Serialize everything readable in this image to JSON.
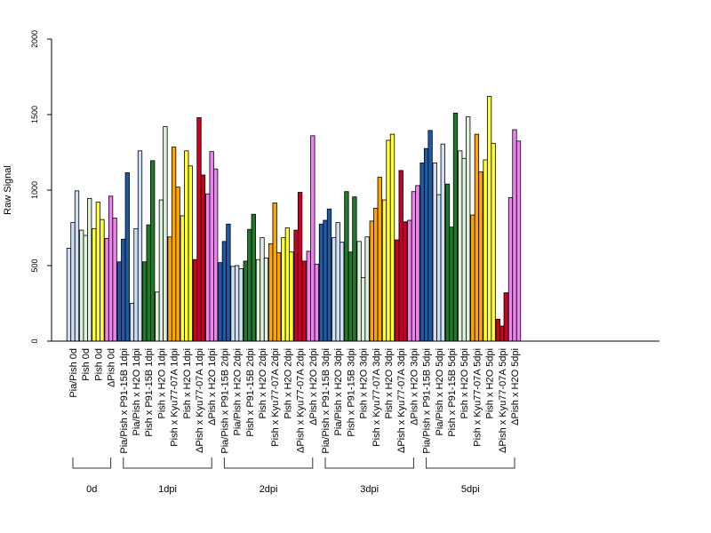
{
  "chart_data": {
    "type": "bar",
    "ylabel": "Raw Signal",
    "ylim": [
      0,
      2000
    ],
    "yticks": [
      0,
      500,
      1000,
      1500,
      2000
    ],
    "grid": false,
    "legend": "none",
    "categories": [
      "Pia/Pish 0d",
      "Pish 0d",
      "Pish 0d",
      "ΔPish 0d",
      "Pia/Pish x P91-15B 1dpi",
      "Pia/Pish x H2O 1dpi",
      "Pish x P91-15B 1dpi",
      "Pish x H2O 1dpi",
      "Pish x Kyu77-07A 1dpi",
      "Pish x H2O 1dpi",
      "ΔPish x Kyu77-07A 1dpi",
      "ΔPish x H2O 1dpi",
      "Pia/Pish x P91-15B 2dpi",
      "Pia/Pish x H2O 2dpi",
      "Pish x P91-15B 2dpi",
      "Pish x H2O 2dpi",
      "Pish x Kyu77-07A 2dpi",
      "Pish x H2O 2dpi",
      "ΔPish x Kyu77-07A 2dpi",
      "ΔPish x H2O 2dpi",
      "Pia/Pish x P91-15B 3dpi",
      "Pia/Pish x H2O 3dpi",
      "Pish x P91-15B 3dpi",
      "Pish x H2O 3dpi",
      "Pish x Kyu77-07A 3dpi",
      "Pish x H2O 3dpi",
      "ΔPish x Kyu77-07A 3dpi",
      "ΔPish x H2O 3dpi",
      "Pia/Pish x P91-15B 5dpi",
      "Pia/Pish x H2O 5dpi",
      "Pish x P91-15B 5dpi",
      "Pish x H2O 5dpi",
      "Pish x Kyu77-07A 5dpi",
      "Pish x H2O 5dpi",
      "ΔPish x Kyu77-07A 5dpi",
      "ΔPish x H2O 5dpi"
    ],
    "colors": [
      "#cfe0f4",
      "#dff0dc",
      "#ffff33",
      "#ee82ee",
      "#1f5aa6",
      "#cfe0f4",
      "#1f7a2a",
      "#dff0dc",
      "#ffa500",
      "#ffff33",
      "#cc0022",
      "#ee82ee",
      "#1f5aa6",
      "#cfe0f4",
      "#1f7a2a",
      "#dff0dc",
      "#ffa500",
      "#ffff33",
      "#cc0022",
      "#ee82ee",
      "#1f5aa6",
      "#cfe0f4",
      "#1f7a2a",
      "#dff0dc",
      "#ffa500",
      "#ffff33",
      "#cc0022",
      "#ee82ee",
      "#1f5aa6",
      "#cfe0f4",
      "#1f7a2a",
      "#dff0dc",
      "#ffa500",
      "#ffff33",
      "#cc0022",
      "#ee82ee"
    ],
    "values": [
      [
        615,
        785,
        995
      ],
      [
        735,
        700,
        945
      ],
      [
        745,
        920,
        805
      ],
      [
        680,
        960,
        815
      ],
      [
        525,
        675,
        1115
      ],
      [
        250,
        745,
        1260
      ],
      [
        525,
        770,
        1195
      ],
      [
        325,
        935,
        1420
      ],
      [
        690,
        1285,
        1020
      ],
      [
        830,
        1260,
        1160
      ],
      [
        540,
        1480,
        1100
      ],
      [
        975,
        1255,
        1140
      ],
      [
        520,
        660,
        775
      ],
      [
        495,
        500,
        480
      ],
      [
        530,
        740,
        840
      ],
      [
        540,
        685,
        550
      ],
      [
        645,
        915,
        585
      ],
      [
        685,
        750,
        590
      ],
      [
        735,
        985,
        530
      ],
      [
        595,
        1360,
        510
      ],
      [
        775,
        800,
        875
      ],
      [
        685,
        785,
        655
      ],
      [
        990,
        590,
        955
      ],
      [
        660,
        420,
        690
      ],
      [
        795,
        880,
        1085
      ],
      [
        935,
        1330,
        1370
      ],
      [
        670,
        1130,
        790
      ],
      [
        800,
        990,
        1030
      ],
      [
        1180,
        1275,
        1395
      ],
      [
        1180,
        970,
        1305
      ],
      [
        1040,
        755,
        1510
      ],
      [
        1260,
        1210,
        1485
      ],
      [
        835,
        1370,
        1120
      ],
      [
        1200,
        1620,
        1310
      ],
      [
        145,
        100,
        320
      ],
      [
        950,
        1400,
        1325
      ]
    ],
    "groups": [
      {
        "label": "0d",
        "start": 0,
        "end": 3
      },
      {
        "label": "1dpi",
        "start": 4,
        "end": 11
      },
      {
        "label": "2dpi",
        "start": 12,
        "end": 19
      },
      {
        "label": "3dpi",
        "start": 20,
        "end": 27
      },
      {
        "label": "5dpi",
        "start": 28,
        "end": 35
      }
    ]
  }
}
